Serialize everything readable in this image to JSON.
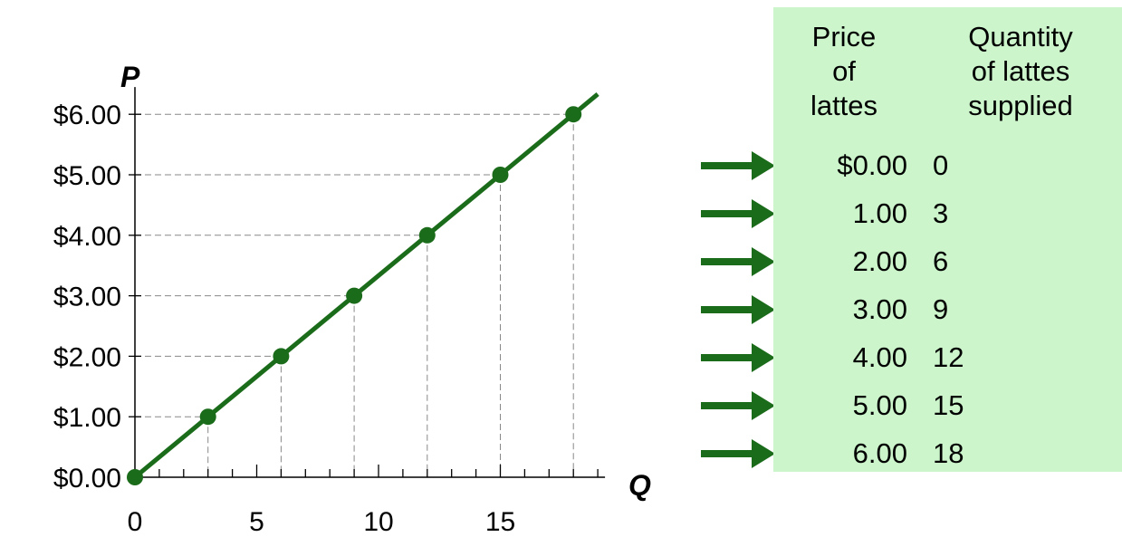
{
  "chart_data": {
    "type": "line",
    "title": "",
    "xlabel": "Q",
    "ylabel": "P",
    "xlim": [
      0,
      19
    ],
    "ylim": [
      0,
      6.3
    ],
    "x_ticks": [
      0,
      5,
      10,
      15
    ],
    "x_tick_labels": [
      "0",
      "5",
      "10",
      "15"
    ],
    "y_ticks": [
      0,
      1,
      2,
      3,
      4,
      5,
      6
    ],
    "y_tick_labels": [
      "$0.00",
      "$1.00",
      "$2.00",
      "$3.00",
      "$4.00",
      "$5.00",
      "$6.00"
    ],
    "grid": "dashed reference lines from each point to both axes",
    "series": [
      {
        "color": "#1a6b1a",
        "points": [
          {
            "x": 0,
            "y": 0
          },
          {
            "x": 3,
            "y": 1
          },
          {
            "x": 6,
            "y": 2
          },
          {
            "x": 9,
            "y": 3
          },
          {
            "x": 12,
            "y": 4
          },
          {
            "x": 15,
            "y": 5
          },
          {
            "x": 18,
            "y": 6
          }
        ]
      }
    ]
  },
  "schedule": {
    "price_header": "Price\nof\nlattes",
    "quantity_header": "Quantity\nof lattes\nsupplied",
    "background": "#ccf5cc",
    "arrow_color": "#1a6b1a",
    "rows": [
      {
        "price": "$0.00",
        "quantity": "0"
      },
      {
        "price": "1.00",
        "quantity": "3"
      },
      {
        "price": "2.00",
        "quantity": "6"
      },
      {
        "price": "3.00",
        "quantity": "9"
      },
      {
        "price": "4.00",
        "quantity": "12"
      },
      {
        "price": "5.00",
        "quantity": "15"
      },
      {
        "price": "6.00",
        "quantity": "18"
      }
    ]
  }
}
